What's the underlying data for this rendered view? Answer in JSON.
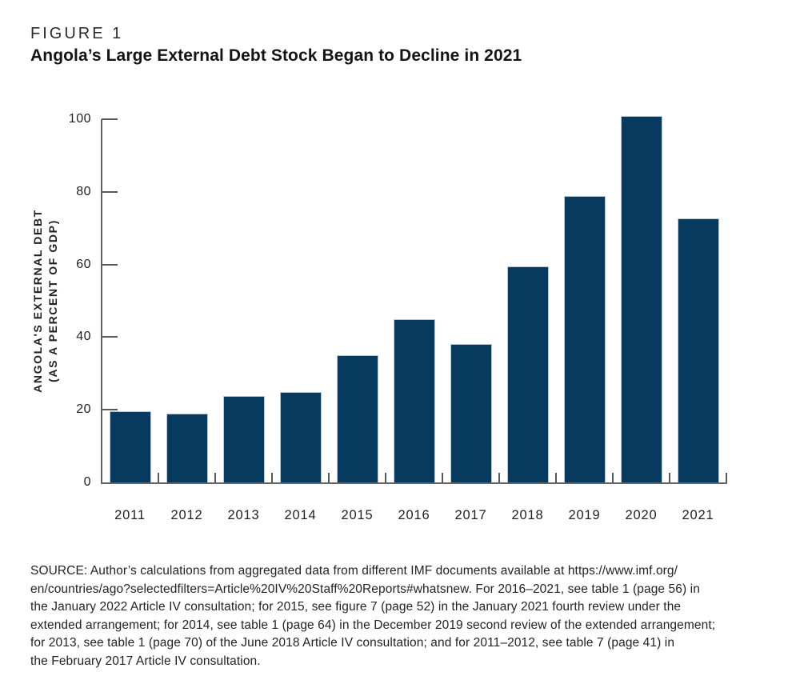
{
  "figure": {
    "label": "FIGURE 1",
    "title": "Angola’s Large External Debt Stock Began to Decline in 2021"
  },
  "chart_data": {
    "type": "bar",
    "categories": [
      "2011",
      "2012",
      "2013",
      "2014",
      "2015",
      "2016",
      "2017",
      "2018",
      "2019",
      "2020",
      "2021"
    ],
    "values": [
      19.7,
      19.0,
      23.7,
      25.0,
      35.0,
      45.0,
      38.2,
      59.4,
      78.8,
      100.8,
      72.6
    ],
    "title": "Angola’s Large External Debt Stock Began to Decline in 2021",
    "xlabel": "",
    "ylabel": "ANGOLA'S EXTERNAL DEBT (AS A PERCENT OF GDP)",
    "ylabel_line1": "ANGOLA'S EXTERNAL DEBT",
    "ylabel_line2": "(AS A PERCENT OF GDP)",
    "ylim": [
      0,
      100
    ],
    "yticks": [
      0,
      20,
      40,
      60,
      80,
      100
    ],
    "grid": false,
    "legend_position": "none",
    "bar_color": "#063a5e",
    "bar_border_color": "#b9c8d6"
  },
  "source": {
    "lines": [
      "SOURCE: Author’s calculations from aggregated data from different IMF documents available at https://www.imf.org/",
      "en/countries/ago?selectedfilters=Article%20IV%20Staff%20Reports#whatsnew. For 2016–2021, see table 1 (page 56) in",
      "the January 2022 Article IV consultation; for 2015, see figure 7 (page 52) in the January 2021 fourth review under the",
      "extended arrangement; for 2014, see table 1 (page 64) in the December 2019 second review of the extended arrangement;",
      "for 2013, see table 1 (page 70) of the June 2018 Article IV consultation; and for 2011–2012, see table 7 (page 41) in",
      "the February 2017 Article IV consultation."
    ]
  }
}
